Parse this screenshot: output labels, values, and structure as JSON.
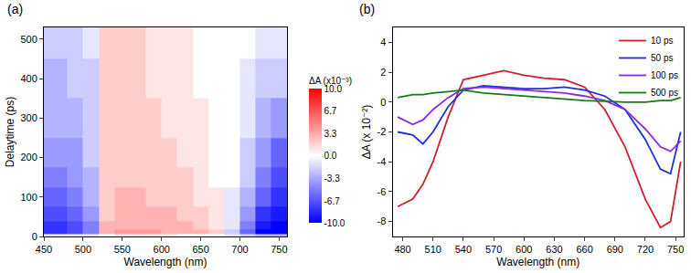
{
  "chart_data": [
    {
      "type": "heatmap",
      "title": "(a)",
      "x_label": "Wavelength (nm)",
      "y_label": "Delaytime (ps)",
      "x": [
        450,
        470,
        490,
        510,
        530,
        550,
        570,
        590,
        610,
        630,
        650,
        670,
        690,
        710,
        730,
        750
      ],
      "y": [
        0,
        10,
        25,
        50,
        100,
        150,
        200,
        300,
        400,
        500
      ],
      "z": [
        [
          -1,
          -1,
          -1,
          -1,
          0,
          1,
          1,
          1,
          1,
          0,
          0,
          0,
          -1,
          -2,
          -3,
          -3
        ],
        [
          -8,
          -8,
          -7,
          -5,
          3,
          4,
          4,
          4,
          3,
          3,
          3,
          2,
          -2,
          -6,
          -10,
          -10
        ],
        [
          -8,
          -8,
          -7,
          -5,
          3,
          3,
          3,
          3,
          3,
          3,
          2,
          1,
          -1,
          -5,
          -9,
          -10
        ],
        [
          -7,
          -7,
          -6,
          -4,
          2,
          3,
          3,
          3,
          3,
          2,
          2,
          1,
          -1,
          -4,
          -8,
          -9
        ],
        [
          -6,
          -6,
          -5,
          -3,
          2,
          3,
          3,
          2,
          2,
          2,
          1,
          1,
          -1,
          -3,
          -6,
          -8
        ],
        [
          -5,
          -5,
          -4,
          -3,
          2,
          2,
          2,
          2,
          2,
          2,
          1,
          0,
          0,
          -2,
          -5,
          -7
        ],
        [
          -4,
          -4,
          -4,
          -2,
          2,
          2,
          2,
          2,
          2,
          1,
          1,
          0,
          0,
          -2,
          -4,
          -6
        ],
        [
          -3,
          -3,
          -3,
          -2,
          2,
          2,
          2,
          2,
          1,
          1,
          1,
          0,
          0,
          -1,
          -3,
          -4
        ],
        [
          -3,
          -3,
          -2,
          -2,
          2,
          2,
          2,
          1,
          1,
          1,
          0,
          0,
          0,
          -1,
          -2,
          -2
        ],
        [
          -2,
          -2,
          -2,
          -1,
          2,
          2,
          2,
          1,
          1,
          1,
          0,
          0,
          0,
          0,
          -1,
          -1
        ]
      ],
      "xlim": [
        450,
        760
      ],
      "xticks": [
        450,
        500,
        550,
        600,
        650,
        700,
        750
      ],
      "ylim": [
        0,
        530
      ],
      "yticks": [
        0,
        100,
        200,
        300,
        400,
        500
      ],
      "colorbar_title": "ΔA (x10⁻³)",
      "zlim": [
        -10,
        10
      ],
      "zticks": [
        {
          "value": 10,
          "label": "10.0"
        },
        6.7,
        3.3,
        {
          "value": 0,
          "label": "0.0"
        },
        -3.3,
        -6.7,
        {
          "value": -10,
          "label": "-10.0"
        }
      ]
    },
    {
      "type": "line",
      "title": "(b)",
      "x_label": "Wavelength (nm)",
      "y_label": "ΔA (x 10⁻²)",
      "x": [
        475,
        490,
        500,
        510,
        525,
        540,
        560,
        580,
        600,
        620,
        640,
        660,
        680,
        700,
        720,
        735,
        745,
        755
      ],
      "series": [
        {
          "name": "10 ps",
          "color": "#d11f2f",
          "values": [
            -7,
            -6.5,
            -5.5,
            -4,
            -1,
            1.5,
            1.8,
            2.1,
            1.8,
            1.6,
            1.5,
            1,
            -0.5,
            -3,
            -6.5,
            -8.4,
            -8,
            -4
          ]
        },
        {
          "name": "50 ps",
          "color": "#1f2fe0",
          "values": [
            -2,
            -2.2,
            -2.8,
            -2,
            -0.3,
            0.8,
            1.1,
            1,
            0.9,
            0.9,
            1,
            0.8,
            0.4,
            -0.5,
            -2.5,
            -4.5,
            -4.8,
            -2
          ]
        },
        {
          "name": "100 ps",
          "color": "#8a2be2",
          "values": [
            -1,
            -1.5,
            -1.2,
            -0.5,
            0.3,
            0.9,
            1,
            0.9,
            0.8,
            0.7,
            0.6,
            0.4,
            0.1,
            -0.5,
            -1.8,
            -3,
            -3.3,
            -2.6
          ]
        },
        {
          "name": "500 ps",
          "color": "#1a7a1a",
          "values": [
            0.3,
            0.5,
            0.5,
            0.6,
            0.7,
            0.8,
            0.6,
            0.5,
            0.4,
            0.3,
            0.2,
            0.1,
            0.05,
            0,
            0,
            0.1,
            0.1,
            0.3
          ]
        }
      ],
      "xlim": [
        470,
        758
      ],
      "xticks": [
        480,
        510,
        540,
        570,
        600,
        630,
        660,
        690,
        720,
        750
      ],
      "ylim": [
        -9,
        5
      ],
      "yticks": [
        -8,
        -6,
        -4,
        -2,
        0,
        2,
        4
      ],
      "legend": "upper right"
    }
  ]
}
